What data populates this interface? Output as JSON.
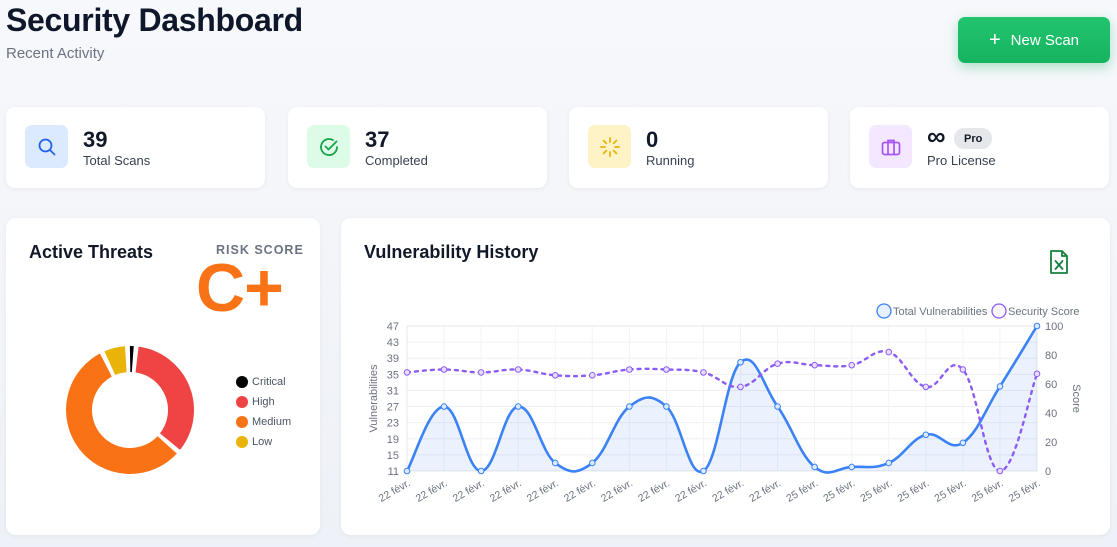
{
  "header": {
    "title": "Security Dashboard",
    "subtitle": "Recent Activity"
  },
  "actions": {
    "new_scan_label": "New Scan"
  },
  "stats": [
    {
      "value": "39",
      "label": "Total Scans",
      "icon": "search-icon",
      "color": "#2563eb"
    },
    {
      "value": "37",
      "label": "Completed",
      "icon": "check-circle-icon",
      "color": "#16a34a"
    },
    {
      "value": "0",
      "label": "Running",
      "icon": "spinner-icon",
      "color": "#eab308"
    },
    {
      "value": "∞",
      "label": "Pro License",
      "badge": "Pro",
      "icon": "briefcase-icon",
      "color": "#a855f7"
    }
  ],
  "threats": {
    "title": "Active Threats",
    "risk_label": "RISK SCORE",
    "risk_grade": "C+",
    "legend": [
      {
        "label": "Critical",
        "color": "#000000"
      },
      {
        "label": "High",
        "color": "#ef4444"
      },
      {
        "label": "Medium",
        "color": "#f97316"
      },
      {
        "label": "Low",
        "color": "#eab308"
      }
    ]
  },
  "chart_data": [
    {
      "type": "pie",
      "variant": "doughnut",
      "categories": [
        "Critical",
        "High",
        "Medium",
        "Low"
      ],
      "values": [
        2,
        32,
        52,
        6
      ],
      "colors": [
        "#000000",
        "#ef4444",
        "#f97316",
        "#eab308"
      ],
      "legend": "right"
    },
    {
      "type": "line",
      "title": "Vulnerability History",
      "categories": [
        "22 févr.",
        "22 févr.",
        "22 févr.",
        "22 févr.",
        "22 févr.",
        "22 févr.",
        "22 févr.",
        "22 févr.",
        "22 févr.",
        "22 févr.",
        "22 févr.",
        "25 févr.",
        "25 févr.",
        "25 févr.",
        "25 févr.",
        "25 févr.",
        "25 févr.",
        "25 févr."
      ],
      "series": [
        {
          "name": "Total Vulnerabilities",
          "axis": "left",
          "color": "#3b82f6",
          "style": "solid",
          "fill": true,
          "values": [
            11,
            27,
            11,
            27,
            13,
            13,
            27,
            27,
            11,
            38,
            27,
            12,
            12,
            13,
            20,
            18,
            32,
            47
          ]
        },
        {
          "name": "Security Score",
          "axis": "right",
          "color": "#8b5cf6",
          "style": "dashed",
          "fill": false,
          "values": [
            68,
            70,
            68,
            70,
            66,
            66,
            70,
            70,
            68,
            58,
            74,
            73,
            73,
            82,
            58,
            70,
            0,
            67
          ]
        }
      ],
      "ylabel": "Vulnerabilities",
      "y2label": "Score",
      "y_ticks": [
        11,
        15,
        19,
        23,
        27,
        31,
        35,
        39,
        43,
        47
      ],
      "y2_ticks": [
        0,
        20,
        40,
        60,
        80,
        100
      ],
      "ylim": [
        11,
        47
      ],
      "y2lim": [
        0,
        100
      ],
      "grid": true,
      "legend": "top-right"
    }
  ]
}
